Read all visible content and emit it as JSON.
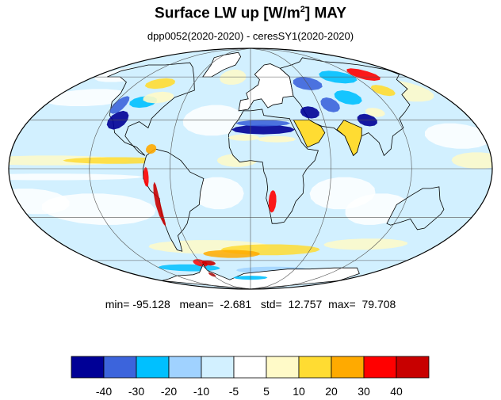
{
  "title": {
    "main": "Surface LW up [W/m",
    "superscript": "2",
    "suffix": "]  MAY"
  },
  "subtitle": "dpp0052(2020-2020) - ceresSY1(2020-2020)",
  "stats": {
    "min_label": "min=",
    "min": "-95.128",
    "mean_label": "mean=",
    "mean": "-2.681",
    "std_label": "std=",
    "std": "12.757",
    "max_label": "max=",
    "max": "79.708"
  },
  "colorbar": {
    "colors": [
      "#000096",
      "#3c64dc",
      "#00c0ff",
      "#a0d2ff",
      "#d2f0ff",
      "#ffffff",
      "#fffac8",
      "#ffdc32",
      "#ffaa00",
      "#ff0000",
      "#c80000"
    ],
    "labels": [
      "-40",
      "-30",
      "-20",
      "-10",
      "-5",
      "5",
      "10",
      "20",
      "30",
      "40"
    ]
  },
  "map": {
    "projection": "mollweide",
    "ocean_color": "#d2f0ff",
    "grid_color": "#555555",
    "coast_color": "#000000"
  }
}
